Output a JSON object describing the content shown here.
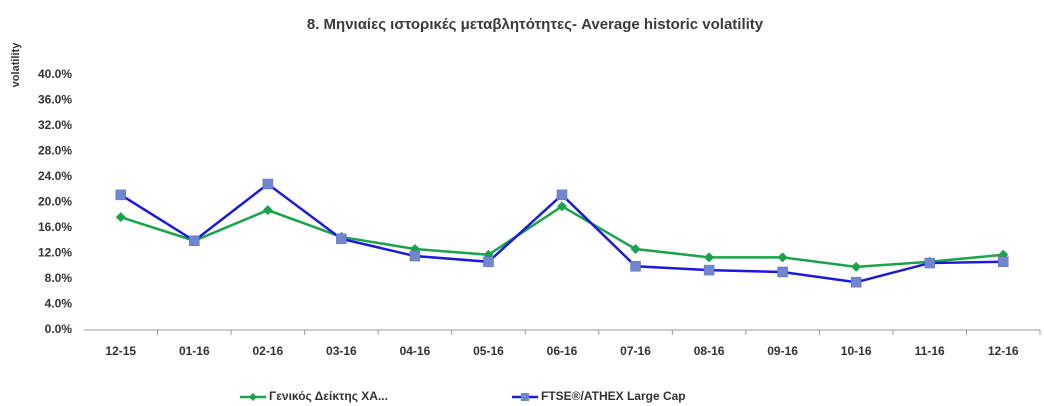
{
  "chart_data": {
    "type": "line",
    "title": "8. Μηνιαίες ιστορικές μεταβλητότητες- Average historic volatility",
    "y_label": "volatility",
    "categories": [
      "12-15",
      "01-16",
      "02-16",
      "03-16",
      "04-16",
      "05-16",
      "06-16",
      "07-16",
      "08-16",
      "09-16",
      "10-16",
      "11-16",
      "12-16"
    ],
    "series": [
      {
        "name": "Γενικός Δείκτης ΧΑ...",
        "color": "#1aa34a",
        "marker": "diamond",
        "values": [
          17.7,
          14.0,
          18.8,
          14.6,
          12.7,
          11.8,
          19.4,
          12.7,
          11.4,
          11.4,
          9.9,
          10.7,
          11.8
        ]
      },
      {
        "name": "FTSE®/ATHEX Large Cap",
        "color": "#1a1adb",
        "marker": "square",
        "values": [
          21.2,
          14.0,
          22.9,
          14.3,
          11.6,
          10.7,
          21.2,
          10.0,
          9.4,
          9.1,
          7.5,
          10.5,
          10.7
        ]
      }
    ],
    "ylim": [
      0,
      40
    ],
    "yticks": [
      {
        "value": 0,
        "label": "0.0%"
      },
      {
        "value": 4,
        "label": "4.0%"
      },
      {
        "value": 8,
        "label": "8.0%"
      },
      {
        "value": 12,
        "label": "12.0%"
      },
      {
        "value": 16,
        "label": "16.0%"
      },
      {
        "value": 20,
        "label": "20.0%"
      },
      {
        "value": 24,
        "label": "24.0%"
      },
      {
        "value": 28,
        "label": "28.0%"
      },
      {
        "value": 32,
        "label": "32.0%"
      },
      {
        "value": 36,
        "label": "36.0%"
      },
      {
        "value": 40,
        "label": "40.0%"
      }
    ],
    "legend": "bottom"
  }
}
